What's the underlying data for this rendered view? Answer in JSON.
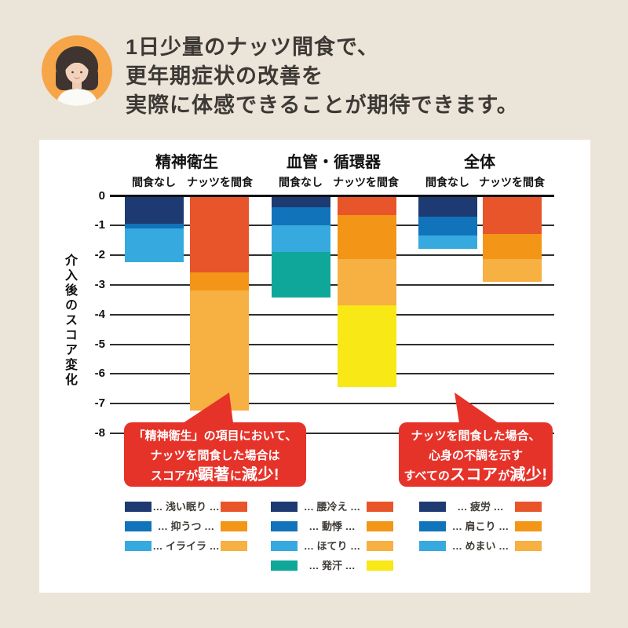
{
  "header": {
    "line1": "1日少量のナッツ間食で、",
    "line2": "更年期症状の改善を",
    "line3": "実際に体感できることが期待できます。",
    "avatar_bg": "#F6A648",
    "text_color": "#3D3935"
  },
  "colors": {
    "page_background": "#EAE4D9",
    "panel_background": "#FFFFFF",
    "navy": "#1E3A72",
    "blue": "#1173B9",
    "light_blue": "#36AADF",
    "teal": "#0FA79A",
    "orange_red": "#E8552A",
    "orange": "#F39517",
    "light_orange": "#F7B042",
    "yellow": "#F7E816",
    "callout_red": "#E6332A"
  },
  "chart_data": {
    "type": "bar",
    "stacked": true,
    "direction": "negative-down",
    "ylabel": "介入後のスコア変化",
    "ylim": [
      -8,
      0
    ],
    "yticks": [
      0,
      -1,
      -2,
      -3,
      -4,
      -5,
      -6,
      -7,
      -8
    ],
    "grid": true,
    "groups": [
      {
        "title": "精神衛生",
        "bars": [
          {
            "label": "間食なし",
            "total": -2.2,
            "segments": [
              {
                "name": "浅い眠り",
                "value": -0.9,
                "color": "#1E3A72"
              },
              {
                "name": "抑うつ",
                "value": -0.15,
                "color": "#1173B9"
              },
              {
                "name": "イライラ",
                "value": -1.15,
                "color": "#36AADF"
              }
            ]
          },
          {
            "label": "ナッツを間食",
            "total": -7.2,
            "segments": [
              {
                "name": "浅い眠り",
                "value": -2.55,
                "color": "#E8552A"
              },
              {
                "name": "抑うつ",
                "value": -0.6,
                "color": "#F39517"
              },
              {
                "name": "イライラ",
                "value": -4.05,
                "color": "#F7B042"
              }
            ]
          }
        ]
      },
      {
        "title": "血管・循環器",
        "bars": [
          {
            "label": "間食なし",
            "total": -3.4,
            "segments": [
              {
                "name": "腰冷え",
                "value": -0.35,
                "color": "#1E3A72"
              },
              {
                "name": "動悸",
                "value": -0.6,
                "color": "#1173B9"
              },
              {
                "name": "ほてり",
                "value": -0.9,
                "color": "#36AADF"
              },
              {
                "name": "発汗",
                "value": -1.55,
                "color": "#0FA79A"
              }
            ]
          },
          {
            "label": "ナッツを間食",
            "total": -6.4,
            "segments": [
              {
                "name": "腰冷え",
                "value": -0.6,
                "color": "#E8552A"
              },
              {
                "name": "動悸",
                "value": -1.5,
                "color": "#F39517"
              },
              {
                "name": "ほてり",
                "value": -1.55,
                "color": "#F7B042"
              },
              {
                "name": "発汗",
                "value": -2.75,
                "color": "#F7E816"
              }
            ]
          }
        ]
      },
      {
        "title": "全体",
        "bars": [
          {
            "label": "間食なし",
            "total": -1.75,
            "segments": [
              {
                "name": "疲労",
                "value": -0.65,
                "color": "#1E3A72"
              },
              {
                "name": "肩こり",
                "value": -0.65,
                "color": "#1173B9"
              },
              {
                "name": "めまい",
                "value": -0.45,
                "color": "#36AADF"
              }
            ]
          },
          {
            "label": "ナッツを間食",
            "total": -2.85,
            "segments": [
              {
                "name": "疲労",
                "value": -1.25,
                "color": "#E8552A"
              },
              {
                "name": "肩こり",
                "value": -0.85,
                "color": "#F39517"
              },
              {
                "name": "めまい",
                "value": -0.75,
                "color": "#F7B042"
              }
            ]
          }
        ]
      }
    ]
  },
  "callouts": [
    {
      "line1": "「精神衛生」の項目において、",
      "line2": "ナッツを間食した場合は",
      "line3_pre": "スコアが",
      "line3_big1": "顕著",
      "line3_mid": "に",
      "line3_big2": "減少",
      "line3_end": "!"
    },
    {
      "line1": "ナッツを間食した場合、",
      "line2": "心身の不調を示す",
      "line3_pre": "すべての",
      "line3_big1": "スコア",
      "line3_mid": "が",
      "line3_big2": "減少",
      "line3_end": "!"
    }
  ],
  "legend": {
    "separator": "…",
    "columns": [
      {
        "rows": [
          {
            "label": "浅い眠り",
            "left_color": "#1E3A72",
            "right_color": "#E8552A"
          },
          {
            "label": "抑うつ",
            "left_color": "#1173B9",
            "right_color": "#F39517"
          },
          {
            "label": "イライラ",
            "left_color": "#36AADF",
            "right_color": "#F7B042"
          }
        ]
      },
      {
        "rows": [
          {
            "label": "腰冷え",
            "left_color": "#1E3A72",
            "right_color": "#E8552A"
          },
          {
            "label": "動悸",
            "left_color": "#1173B9",
            "right_color": "#F39517"
          },
          {
            "label": "ほてり",
            "left_color": "#36AADF",
            "right_color": "#F7B042"
          },
          {
            "label": "発汗",
            "left_color": "#0FA79A",
            "right_color": "#F7E816"
          }
        ]
      },
      {
        "rows": [
          {
            "label": "疲労",
            "left_color": "#1E3A72",
            "right_color": "#E8552A"
          },
          {
            "label": "肩こり",
            "left_color": "#1173B9",
            "right_color": "#F39517"
          },
          {
            "label": "めまい",
            "left_color": "#36AADF",
            "right_color": "#F7B042"
          }
        ]
      }
    ]
  }
}
